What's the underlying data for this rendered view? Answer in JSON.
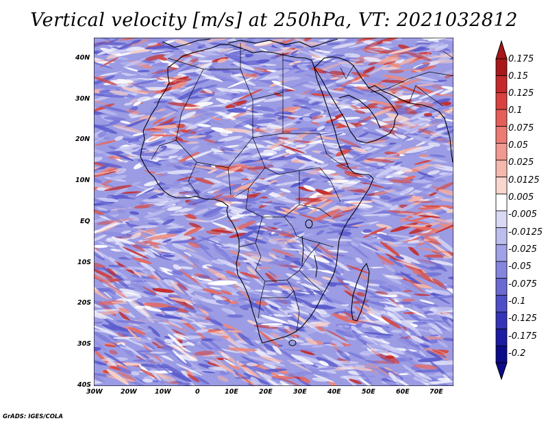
{
  "title": "Vertical velocity [m/s] at 250hPa, VT: 2021032812",
  "credit": "GrADS: IGES/COLA",
  "map": {
    "variable": "vertical velocity",
    "level": "250hPa",
    "valid_time": "2021032812",
    "lon_labels": [
      "30W",
      "20W",
      "10W",
      "0",
      "10E",
      "20E",
      "30E",
      "40E",
      "50E",
      "60E",
      "70E"
    ],
    "lat_labels": [
      "40N",
      "30N",
      "20N",
      "10N",
      "EQ",
      "10S",
      "20S",
      "30S",
      "40S"
    ]
  },
  "colorbar": {
    "labels": [
      "0.175",
      "0.15",
      "0.125",
      "0.1",
      "0.075",
      "0.05",
      "0.025",
      "0.0125",
      "0.005",
      "-0.005",
      "-0.0125",
      "-0.025",
      "-0.05",
      "-0.075",
      "-0.1",
      "-0.125",
      "-0.175",
      "-0.2"
    ],
    "colors": [
      "#a8181a",
      "#c52a2a",
      "#d94240",
      "#e45e5a",
      "#ec7b74",
      "#f19a90",
      "#f5b8ad",
      "#f9d6ce",
      "#ffffff",
      "#d9d9f5",
      "#bdbdee",
      "#a1a1e6",
      "#8585de",
      "#6a6ad3",
      "#4f4fc8",
      "#3434b8",
      "#1c1ca2",
      "#0c0c88"
    ]
  }
}
